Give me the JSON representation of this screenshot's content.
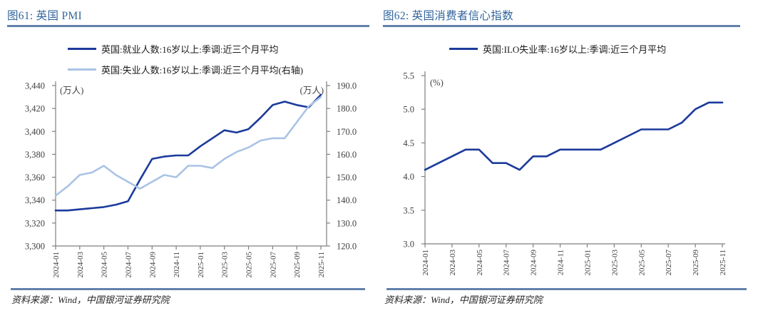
{
  "panels": [
    {
      "title": "图61: 英国 PMI",
      "legend": [
        {
          "label": "英国:就业人数:16岁以上:季调:近三个月平均",
          "color": "#1B3A9B"
        },
        {
          "label": "英国:失业人数:16岁以上:季调:近三个月平均(右轴)",
          "color": "#A9C3E5"
        }
      ],
      "source": "资料来源：Wind，中国银河证券研究院"
    },
    {
      "title": "图62: 英国消费者信心指数",
      "legend": [
        {
          "label": "英国:ILO失业率:16岁以上:季调:近三个月平均",
          "color": "#1B3A9B"
        }
      ],
      "source": "资料来源：Wind，中国银河证券研究院"
    }
  ],
  "colors": {
    "title_blue": "#31659C",
    "rule_blue": "#6380AC",
    "series_dark_blue": "#1B3A9B",
    "series_light_blue": "#A9C3E5",
    "axis_line": "#7F7F7F",
    "axis_label": "#404040"
  },
  "chart_data": [
    {
      "type": "line",
      "title": "图61: 英国 PMI",
      "x": [
        "2024-01",
        "2024-02",
        "2024-03",
        "2024-04",
        "2024-05",
        "2024-06",
        "2024-07",
        "2024-08",
        "2024-09",
        "2024-10",
        "2024-11",
        "2024-12",
        "2025-01",
        "2025-02",
        "2025-03",
        "2025-04",
        "2025-05",
        "2025-06",
        "2025-07",
        "2025-08",
        "2025-09",
        "2025-10",
        "2025-11"
      ],
      "x_tick_labels": [
        "2024-01",
        "2024-03",
        "2024-05",
        "2024-07",
        "2024-09",
        "2024-11",
        "2025-01",
        "2025-03",
        "2025-05",
        "2025-07",
        "2025-09",
        "2025-11"
      ],
      "left_axis": {
        "unit": "(万人)",
        "min": 3300,
        "max": 3440,
        "tick_step": 20,
        "tick_labels": [
          "3,440",
          "3,420",
          "3,400",
          "3,380",
          "3,360",
          "3,340",
          "3,320",
          "3,300"
        ]
      },
      "right_axis": {
        "unit": "(万人)",
        "min": 120,
        "max": 190,
        "tick_step": 10,
        "tick_labels": [
          "190.0",
          "180.0",
          "170.0",
          "160.0",
          "150.0",
          "140.0",
          "130.0",
          "120.0"
        ]
      },
      "series": [
        {
          "name": "英国:就业人数:16岁以上:季调:近三个月平均",
          "axis": "left",
          "color": "#1B3A9B",
          "values": [
            3331,
            3331,
            3332,
            3333,
            3334,
            3336,
            3339,
            3358,
            3376,
            3378,
            3379,
            3379,
            3387,
            3394,
            3401,
            3399,
            3402,
            3412,
            3423,
            3426,
            3423,
            3421,
            3432
          ]
        },
        {
          "name": "英国:失业人数:16岁以上:季调:近三个月平均(右轴)",
          "axis": "right",
          "color": "#A9C3E5",
          "values": [
            142,
            146,
            151,
            152,
            155,
            151,
            148,
            145,
            148,
            151,
            150,
            155,
            155,
            154,
            158,
            161,
            163,
            166,
            167,
            167,
            174,
            181,
            185
          ]
        }
      ],
      "grid": false,
      "legend_position": "top"
    },
    {
      "type": "line",
      "title": "图62: 英国消费者信心指数",
      "x": [
        "2024-01",
        "2024-02",
        "2024-03",
        "2024-04",
        "2024-05",
        "2024-06",
        "2024-07",
        "2024-08",
        "2024-09",
        "2024-10",
        "2024-11",
        "2024-12",
        "2025-01",
        "2025-02",
        "2025-03",
        "2025-04",
        "2025-05",
        "2025-06",
        "2025-07",
        "2025-08",
        "2025-09",
        "2025-10",
        "2025-11"
      ],
      "x_tick_labels": [
        "2024-01",
        "2024-03",
        "2024-05",
        "2024-07",
        "2024-09",
        "2024-11",
        "2025-01",
        "2025-03",
        "2025-05",
        "2025-07",
        "2025-09",
        "2025-11"
      ],
      "left_axis": {
        "unit": "(%)",
        "min": 3.0,
        "max": 5.5,
        "tick_step": 0.5,
        "tick_labels": [
          "5.5",
          "5.0",
          "4.5",
          "4.0",
          "3.5",
          "3.0"
        ]
      },
      "series": [
        {
          "name": "英国:ILO失业率:16岁以上:季调:近三个月平均",
          "axis": "left",
          "color": "#1B3A9B",
          "values": [
            4.1,
            4.2,
            4.3,
            4.4,
            4.4,
            4.2,
            4.2,
            4.1,
            4.3,
            4.3,
            4.4,
            4.4,
            4.4,
            4.4,
            4.5,
            4.6,
            4.7,
            4.7,
            4.7,
            4.8,
            5.0,
            5.1,
            5.1
          ]
        }
      ],
      "grid": false,
      "legend_position": "top"
    }
  ]
}
